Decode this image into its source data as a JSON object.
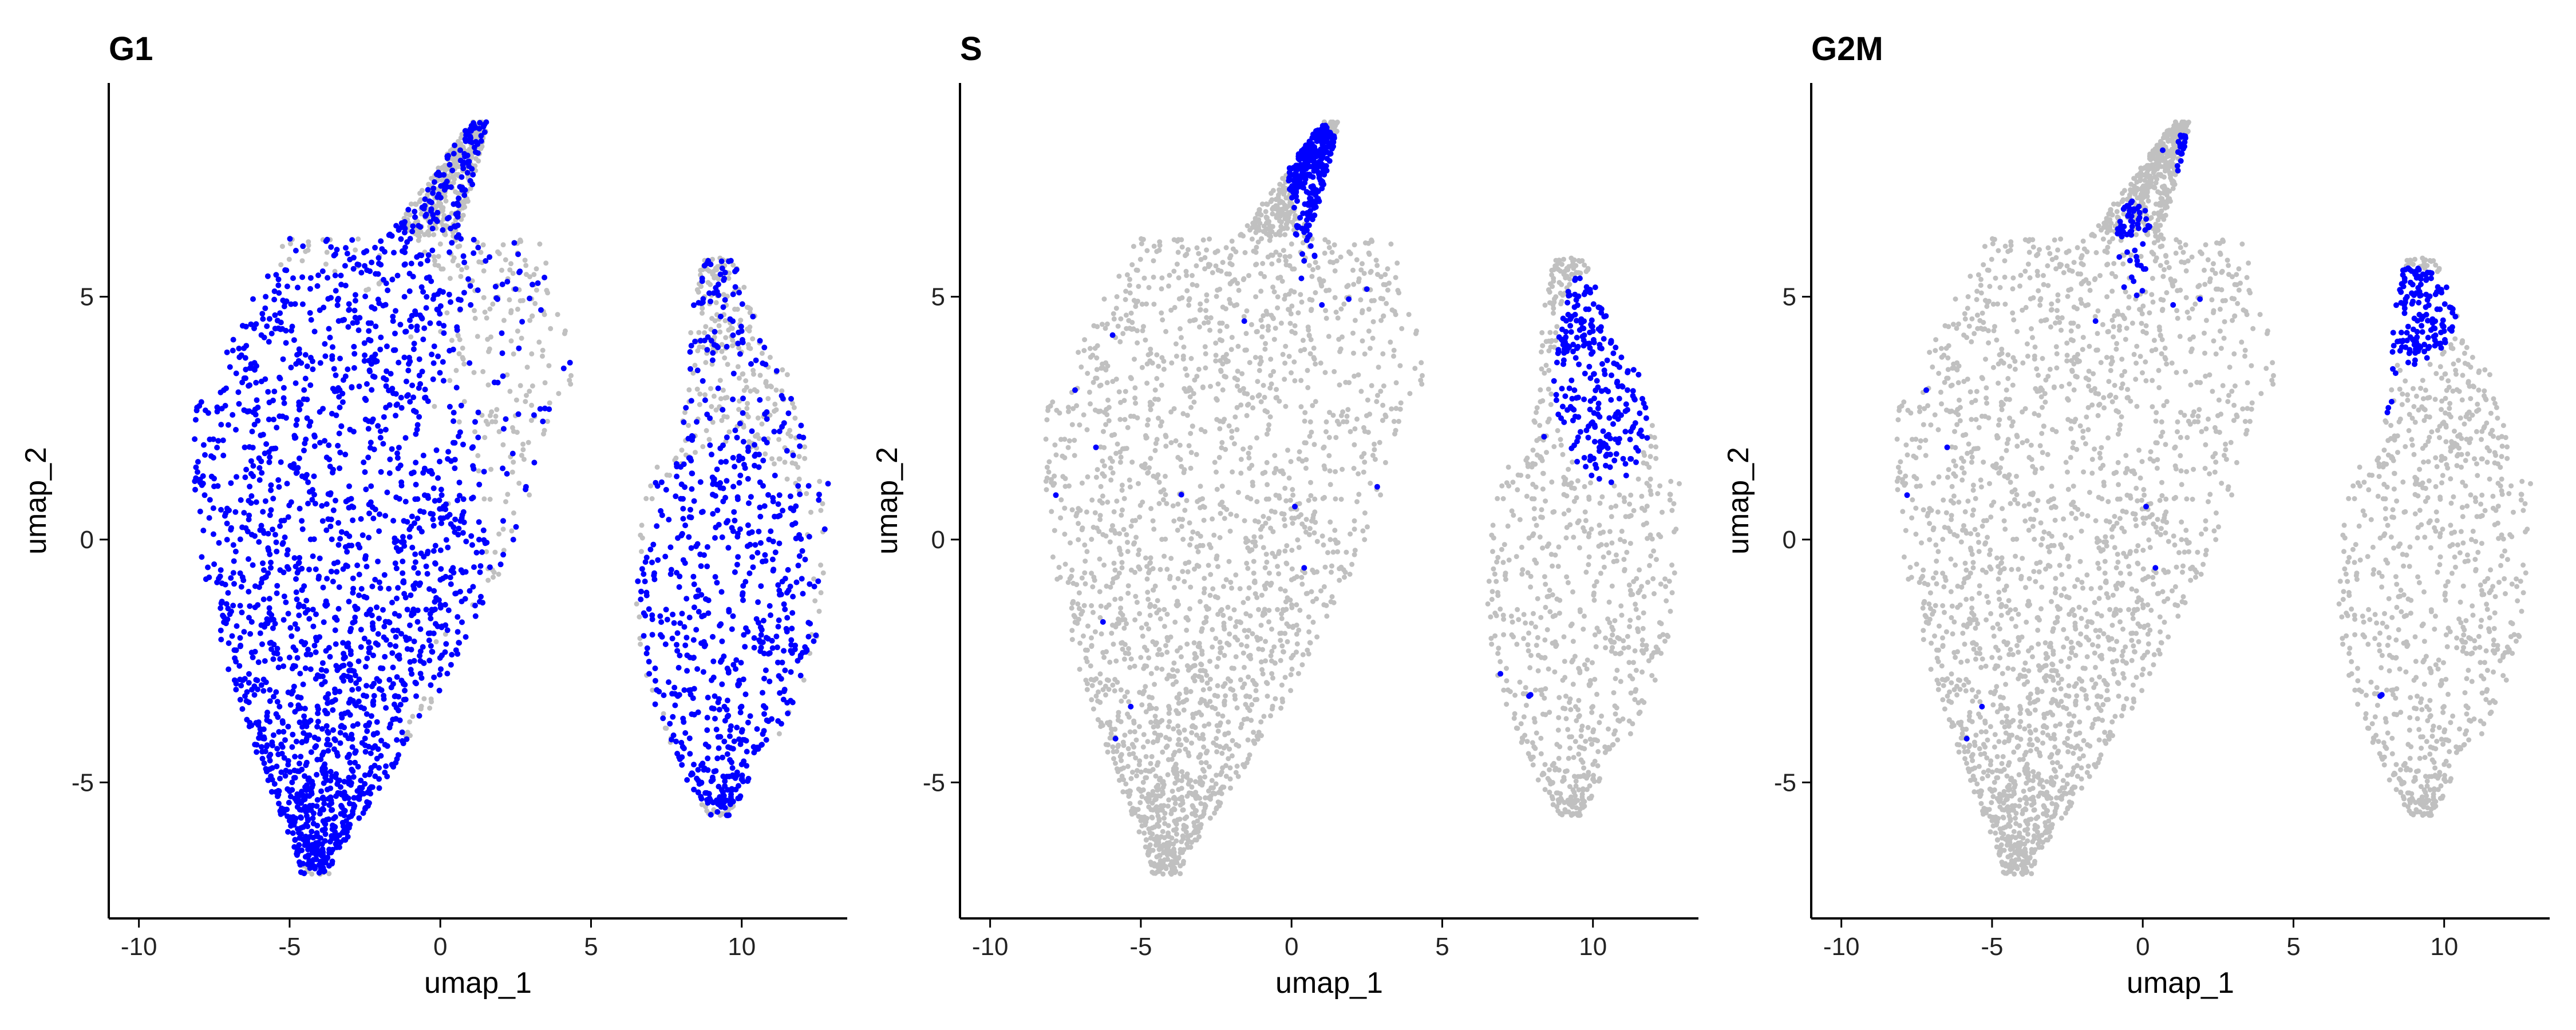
{
  "chart_data": [
    {
      "type": "scatter",
      "title": "G1",
      "xlabel": "umap_1",
      "ylabel": "umap_2",
      "xlim": [
        -11,
        13.5
      ],
      "ylim": [
        -7.8,
        9.4
      ],
      "xticks": [
        -10,
        -5,
        0,
        5,
        10
      ],
      "yticks": [
        -5,
        0,
        5
      ],
      "xtick_labels": [
        "-10",
        "-5",
        "0",
        "5",
        "10"
      ],
      "ytick_labels": [
        "-5",
        "0",
        "5"
      ],
      "grid": false,
      "legend": "none",
      "background_color": "#c0c0c0",
      "highlight_color": "#0000ff",
      "highlight_regions": [
        {
          "cx": -4.5,
          "cy": 0.0,
          "rx": 4.6,
          "ry": 5.6,
          "density": 1.0
        },
        {
          "cx": -3.8,
          "cy": -4.5,
          "rx": 2.6,
          "ry": 2.3,
          "density": 1.0
        },
        {
          "cx": -7.5,
          "cy": 3.5,
          "rx": 2.4,
          "ry": 2.5,
          "density": 1.0
        },
        {
          "cx": -2.0,
          "cy": 3.0,
          "rx": 2.5,
          "ry": 3.6,
          "density": 0.85
        },
        {
          "cx": 0.2,
          "cy": -0.3,
          "rx": 1.3,
          "ry": 3.0,
          "density": 0.9
        },
        {
          "cx": 9.5,
          "cy": -1.2,
          "rx": 2.9,
          "ry": 3.2,
          "density": 1.0
        },
        {
          "cx": 9.3,
          "cy": -4.2,
          "rx": 1.6,
          "ry": 1.3,
          "density": 1.0
        }
      ],
      "scattered_fraction": 0.3
    },
    {
      "type": "scatter",
      "title": "S",
      "xlabel": "umap_1",
      "ylabel": "umap_2",
      "xlim": [
        -11,
        13.5
      ],
      "ylim": [
        -7.8,
        9.4
      ],
      "xticks": [
        -10,
        -5,
        0,
        5,
        10
      ],
      "yticks": [
        -5,
        0,
        5
      ],
      "xtick_labels": [
        "-10",
        "-5",
        "0",
        "5",
        "10"
      ],
      "ytick_labels": [
        "-5",
        "0",
        "5"
      ],
      "grid": false,
      "legend": "none",
      "background_color": "#c0c0c0",
      "highlight_color": "#0000ff",
      "highlight_regions": [
        {
          "cx": 0.8,
          "cy": 7.5,
          "rx": 0.9,
          "ry": 1.1,
          "density": 1.0
        },
        {
          "cx": 0.5,
          "cy": 5.9,
          "rx": 0.5,
          "ry": 0.8,
          "density": 0.7
        },
        {
          "cx": 10.4,
          "cy": 3.3,
          "rx": 1.7,
          "ry": 2.2,
          "density": 1.0
        },
        {
          "cx": 9.8,
          "cy": 4.9,
          "rx": 0.7,
          "ry": 0.6,
          "density": 1.0
        }
      ],
      "scattered_fraction": 0.008
    },
    {
      "type": "scatter",
      "title": "G2M",
      "xlabel": "umap_1",
      "ylabel": "umap_2",
      "xlim": [
        -11,
        13.5
      ],
      "ylim": [
        -7.8,
        9.4
      ],
      "xticks": [
        -10,
        -5,
        0,
        5,
        10
      ],
      "yticks": [
        -5,
        0,
        5
      ],
      "xtick_labels": [
        "-10",
        "-5",
        "0",
        "5",
        "10"
      ],
      "ytick_labels": [
        "-5",
        "0",
        "5"
      ],
      "grid": false,
      "legend": "none",
      "background_color": "#c0c0c0",
      "highlight_color": "#0000ff",
      "highlight_regions": [
        {
          "cx": 1.4,
          "cy": 7.8,
          "rx": 0.3,
          "ry": 0.6,
          "density": 0.9
        },
        {
          "cx": -0.3,
          "cy": 6.0,
          "rx": 0.6,
          "ry": 1.0,
          "density": 0.6
        },
        {
          "cx": 9.0,
          "cy": 4.6,
          "rx": 1.4,
          "ry": 1.0,
          "density": 1.0
        },
        {
          "cx": 8.0,
          "cy": 3.1,
          "rx": 0.5,
          "ry": 0.9,
          "density": 0.5
        }
      ],
      "scattered_fraction": 0.004
    }
  ]
}
